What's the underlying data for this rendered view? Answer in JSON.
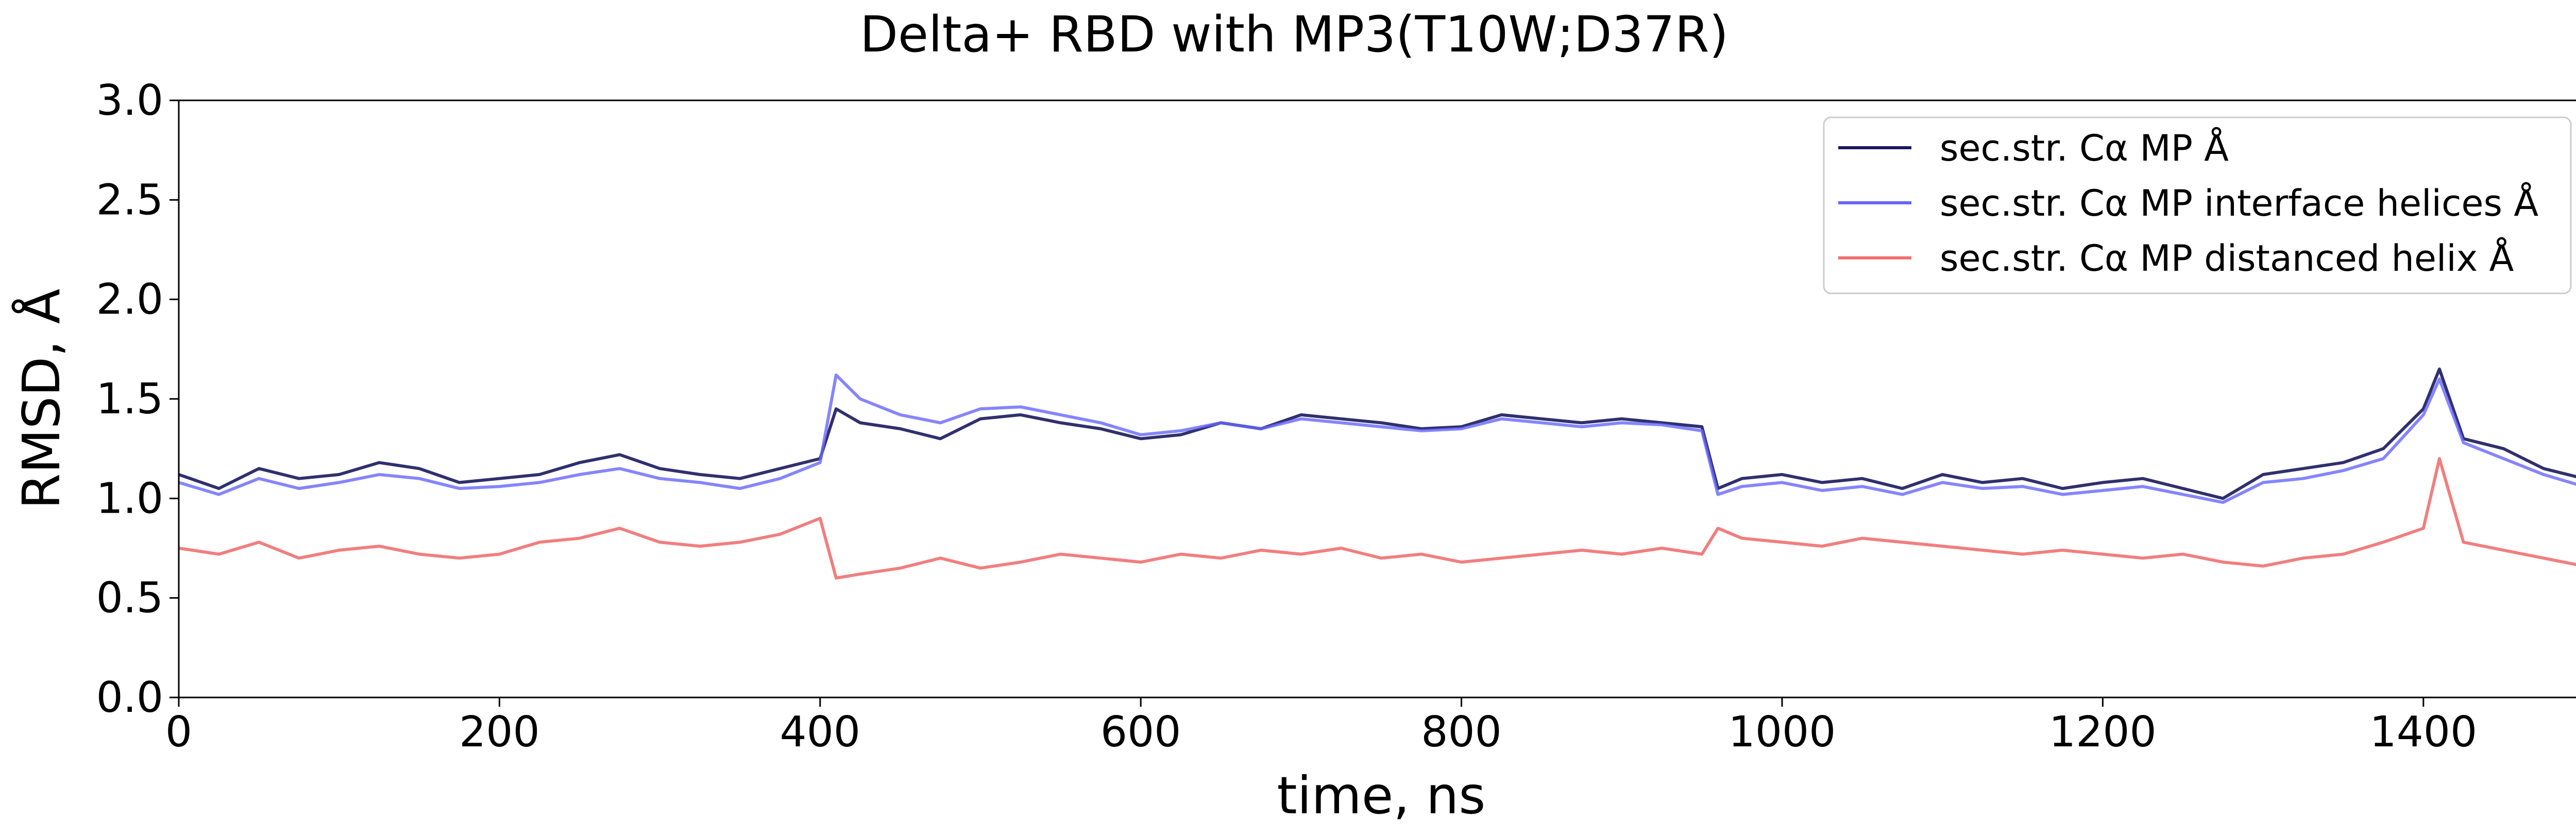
{
  "chart_data": {
    "type": "line",
    "title": "Delta+ RBD with MP3(T10W;D37R)",
    "xlabel": "time, ns",
    "ylabel": "RMSD, Å",
    "xlim": [
      0,
      1500
    ],
    "ylim": [
      0.0,
      3.0
    ],
    "xticks": [
      0,
      200,
      400,
      600,
      800,
      1000,
      1200,
      1400
    ],
    "xtick_labels": [
      "0",
      "200",
      "400",
      "600",
      "800",
      "1000",
      "1200",
      "1400"
    ],
    "yticks": [
      0.0,
      0.5,
      1.0,
      1.5,
      2.0,
      2.5,
      3.0
    ],
    "ytick_labels": [
      "0.0",
      "0.5",
      "1.0",
      "1.5",
      "2.0",
      "2.5",
      "3.0"
    ],
    "grid": false,
    "legend_position": "top-right",
    "series": [
      {
        "name": "sec.str. Cα MP Å",
        "color": "#1a1a5e",
        "x": [
          0,
          25,
          50,
          75,
          100,
          125,
          150,
          175,
          200,
          225,
          250,
          275,
          300,
          325,
          350,
          375,
          400,
          410,
          425,
          450,
          475,
          500,
          525,
          550,
          575,
          600,
          625,
          650,
          675,
          700,
          725,
          750,
          775,
          800,
          825,
          850,
          875,
          900,
          925,
          950,
          960,
          975,
          1000,
          1025,
          1050,
          1075,
          1100,
          1125,
          1150,
          1175,
          1200,
          1225,
          1250,
          1275,
          1300,
          1325,
          1350,
          1375,
          1400,
          1410,
          1425,
          1450,
          1475,
          1500
        ],
        "y": [
          1.12,
          1.05,
          1.15,
          1.1,
          1.12,
          1.18,
          1.15,
          1.08,
          1.1,
          1.12,
          1.18,
          1.22,
          1.15,
          1.12,
          1.1,
          1.15,
          1.2,
          1.45,
          1.38,
          1.35,
          1.3,
          1.4,
          1.42,
          1.38,
          1.35,
          1.3,
          1.32,
          1.38,
          1.35,
          1.42,
          1.4,
          1.38,
          1.35,
          1.36,
          1.42,
          1.4,
          1.38,
          1.4,
          1.38,
          1.36,
          1.05,
          1.1,
          1.12,
          1.08,
          1.1,
          1.05,
          1.12,
          1.08,
          1.1,
          1.05,
          1.08,
          1.1,
          1.05,
          1.0,
          1.12,
          1.15,
          1.18,
          1.25,
          1.45,
          1.65,
          1.3,
          1.25,
          1.15,
          1.1
        ]
      },
      {
        "name": "sec.str. Cα MP interface helices Å",
        "color": "#6666ff",
        "x": [
          0,
          25,
          50,
          75,
          100,
          125,
          150,
          175,
          200,
          225,
          250,
          275,
          300,
          325,
          350,
          375,
          400,
          410,
          425,
          450,
          475,
          500,
          525,
          550,
          575,
          600,
          625,
          650,
          675,
          700,
          725,
          750,
          775,
          800,
          825,
          850,
          875,
          900,
          925,
          950,
          960,
          975,
          1000,
          1025,
          1050,
          1075,
          1100,
          1125,
          1150,
          1175,
          1200,
          1225,
          1250,
          1275,
          1300,
          1325,
          1350,
          1375,
          1400,
          1410,
          1425,
          1450,
          1475,
          1500
        ],
        "y": [
          1.08,
          1.02,
          1.1,
          1.05,
          1.08,
          1.12,
          1.1,
          1.05,
          1.06,
          1.08,
          1.12,
          1.15,
          1.1,
          1.08,
          1.05,
          1.1,
          1.18,
          1.62,
          1.5,
          1.42,
          1.38,
          1.45,
          1.46,
          1.42,
          1.38,
          1.32,
          1.34,
          1.38,
          1.35,
          1.4,
          1.38,
          1.36,
          1.34,
          1.35,
          1.4,
          1.38,
          1.36,
          1.38,
          1.37,
          1.34,
          1.02,
          1.06,
          1.08,
          1.04,
          1.06,
          1.02,
          1.08,
          1.05,
          1.06,
          1.02,
          1.04,
          1.06,
          1.02,
          0.98,
          1.08,
          1.1,
          1.14,
          1.2,
          1.42,
          1.6,
          1.28,
          1.2,
          1.12,
          1.06
        ]
      },
      {
        "name": "sec.str. Cα MP distanced helix Å",
        "color": "#f07070",
        "x": [
          0,
          25,
          50,
          75,
          100,
          125,
          150,
          175,
          200,
          225,
          250,
          275,
          300,
          325,
          350,
          375,
          400,
          410,
          425,
          450,
          475,
          500,
          525,
          550,
          575,
          600,
          625,
          650,
          675,
          700,
          725,
          750,
          775,
          800,
          825,
          850,
          875,
          900,
          925,
          950,
          960,
          975,
          1000,
          1025,
          1050,
          1075,
          1100,
          1125,
          1150,
          1175,
          1200,
          1225,
          1250,
          1275,
          1300,
          1325,
          1350,
          1375,
          1400,
          1410,
          1425,
          1450,
          1475,
          1500
        ],
        "y": [
          0.75,
          0.72,
          0.78,
          0.7,
          0.74,
          0.76,
          0.72,
          0.7,
          0.72,
          0.78,
          0.8,
          0.85,
          0.78,
          0.76,
          0.78,
          0.82,
          0.9,
          0.6,
          0.62,
          0.65,
          0.7,
          0.65,
          0.68,
          0.72,
          0.7,
          0.68,
          0.72,
          0.7,
          0.74,
          0.72,
          0.75,
          0.7,
          0.72,
          0.68,
          0.7,
          0.72,
          0.74,
          0.72,
          0.75,
          0.72,
          0.85,
          0.8,
          0.78,
          0.76,
          0.8,
          0.78,
          0.76,
          0.74,
          0.72,
          0.74,
          0.72,
          0.7,
          0.72,
          0.68,
          0.66,
          0.7,
          0.72,
          0.78,
          0.85,
          1.2,
          0.78,
          0.74,
          0.7,
          0.66
        ]
      }
    ]
  }
}
